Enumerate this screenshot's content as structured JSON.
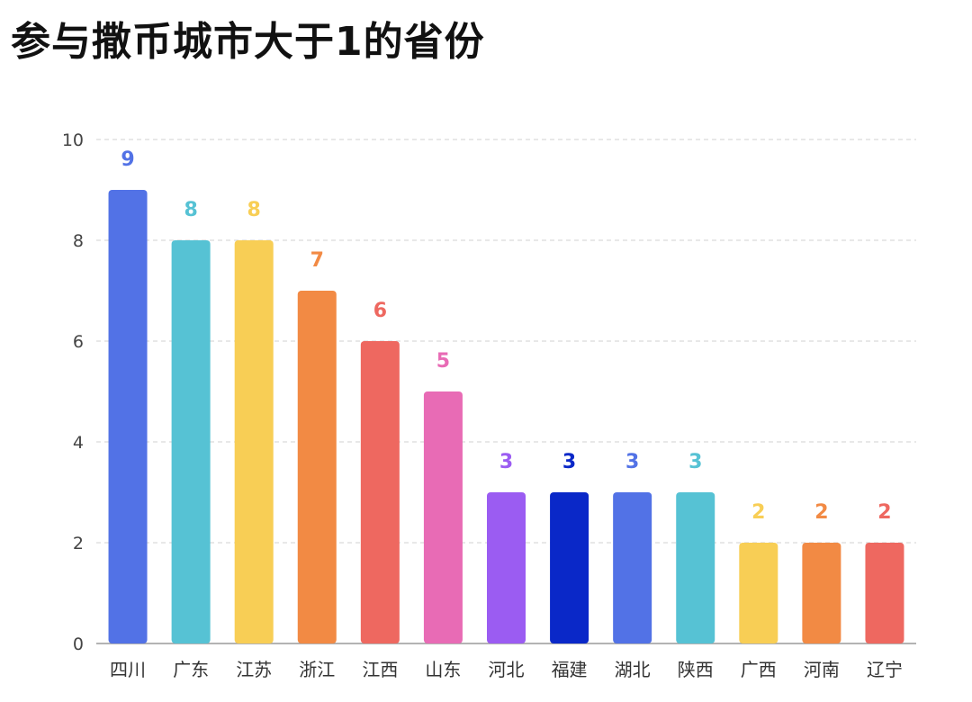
{
  "chart_data": {
    "type": "bar",
    "title": "参与撒币城市大于1的省份",
    "xlabel": "",
    "ylabel": "",
    "ylim": [
      0,
      10
    ],
    "yticks": [
      0,
      2,
      4,
      6,
      8,
      10
    ],
    "grid": true,
    "categories": [
      "四川",
      "广东",
      "江苏",
      "浙江",
      "江西",
      "山东",
      "河北",
      "福建",
      "湖北",
      "陕西",
      "广西",
      "河南",
      "辽宁"
    ],
    "values": [
      9,
      8,
      8,
      7,
      6,
      5,
      3,
      3,
      3,
      3,
      2,
      2,
      2
    ],
    "colors": [
      "#5272e6",
      "#56c2d4",
      "#f8ce55",
      "#f28a44",
      "#ee6860",
      "#e86bb5",
      "#9b5cf2",
      "#0a28c8",
      "#5272e6",
      "#56c2d4",
      "#f8ce55",
      "#f28a44",
      "#ee6860"
    ]
  }
}
